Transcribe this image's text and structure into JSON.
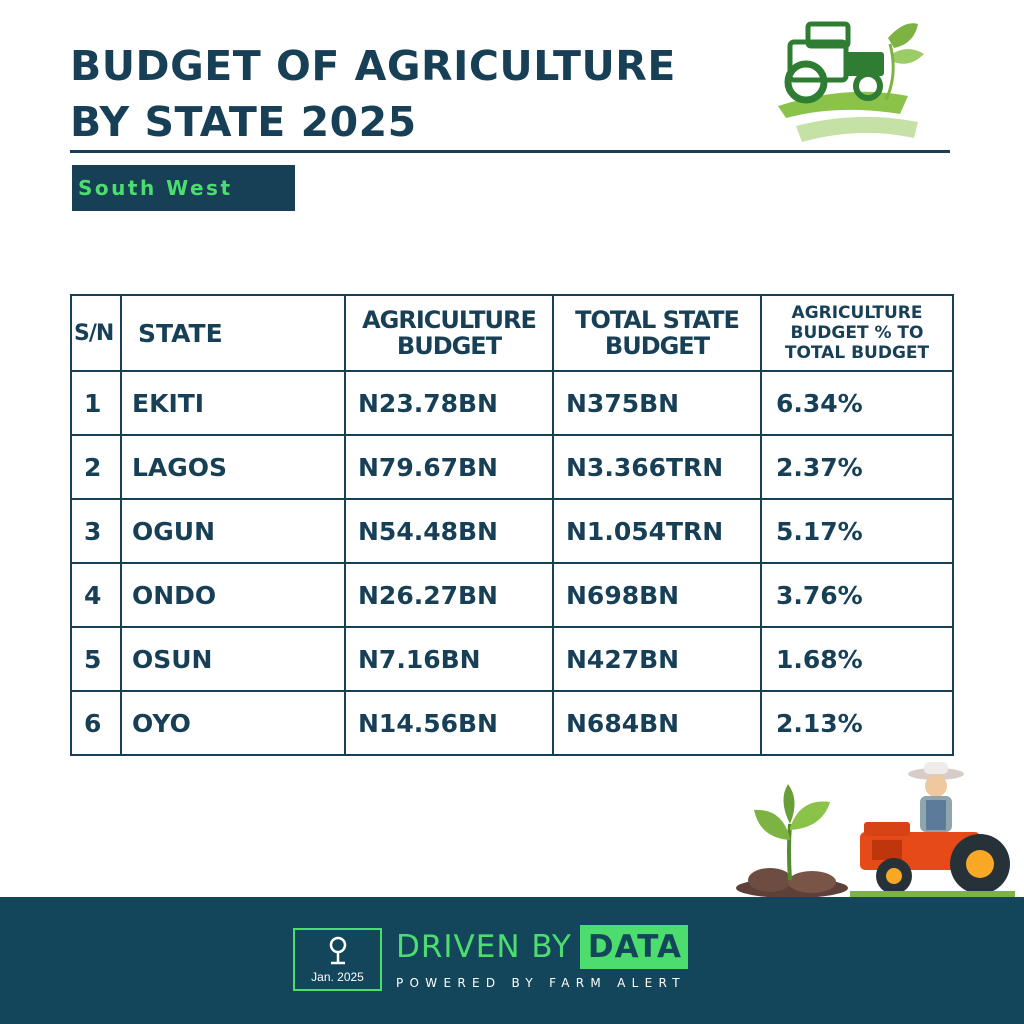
{
  "title": {
    "line1": "BUDGET OF AGRICULTURE",
    "line2": "BY STATE 2025"
  },
  "region": "South West",
  "table": {
    "headers": {
      "sn": "S/N",
      "state": "STATE",
      "agri_l1": "AGRICULTURE",
      "agri_l2": "BUDGET",
      "total_l1": "TOTAL STATE",
      "total_l2": "BUDGET",
      "pct_l1": "AGRICULTURE",
      "pct_l2": "BUDGET % TO",
      "pct_l3": "TOTAL BUDGET"
    },
    "rows": [
      {
        "sn": "1",
        "state": "EKITI",
        "agri": "N23.78BN",
        "total": "N375BN",
        "pct": "6.34%"
      },
      {
        "sn": "2",
        "state": "LAGOS",
        "agri": "N79.67BN",
        "total": "N3.366TRN",
        "pct": "2.37%"
      },
      {
        "sn": "3",
        "state": "OGUN",
        "agri": "N54.48BN",
        "total": "N1.054TRN",
        "pct": "5.17%"
      },
      {
        "sn": "4",
        "state": "ONDO",
        "agri": "N26.27BN",
        "total": "N698BN",
        "pct": "3.76%"
      },
      {
        "sn": "5",
        "state": "OSUN",
        "agri": "N7.16BN",
        "total": "N427BN",
        "pct": "1.68%"
      },
      {
        "sn": "6",
        "state": "OYO",
        "agri": "N14.56BN",
        "total": "N684BN",
        "pct": "2.13%"
      }
    ]
  },
  "footer": {
    "date": "Jan. 2025",
    "brand_lead": "DRIVEN BY",
    "brand_box": "DATA",
    "powered": "POWERED BY FARM ALERT"
  },
  "icons": {
    "logo": "tractor-leaf-logo-icon",
    "plant": "seedling-icon",
    "farmer": "farmer-on-tractor-icon",
    "badge": "map-pin-icon"
  },
  "colors": {
    "navy": "#173f56",
    "footer": "#13465a",
    "green": "#4ddc6e",
    "leaf": "#7cb342"
  }
}
